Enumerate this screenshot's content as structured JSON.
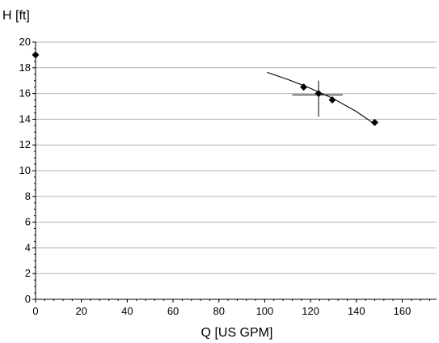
{
  "chart_data": {
    "type": "scatter",
    "xlabel": "Q [US GPM]",
    "ylabel": "H [ft]",
    "xlim": [
      0,
      175
    ],
    "ylim": [
      0,
      20
    ],
    "x_ticks": [
      0,
      20,
      40,
      60,
      80,
      100,
      120,
      140,
      160
    ],
    "y_ticks": [
      0,
      2,
      4,
      6,
      8,
      10,
      12,
      14,
      16,
      18,
      20
    ],
    "x_minor_step": 4,
    "y_minor_step": 0.5,
    "grid": "horizontal major",
    "points": [
      {
        "x": 0,
        "y": 19.0
      },
      {
        "x": 117,
        "y": 16.5
      },
      {
        "x": 123.5,
        "y": 16.0
      },
      {
        "x": 129.5,
        "y": 15.5
      },
      {
        "x": 148,
        "y": 13.75
      }
    ],
    "curve": [
      {
        "x": 101,
        "y": 17.65
      },
      {
        "x": 110,
        "y": 17.1
      },
      {
        "x": 120,
        "y": 16.4
      },
      {
        "x": 130,
        "y": 15.6
      },
      {
        "x": 140,
        "y": 14.6
      },
      {
        "x": 147,
        "y": 13.75
      }
    ],
    "operating_point": {
      "x": 123.5,
      "y": 15.9,
      "x_error": [
        112,
        134
      ],
      "y_error": [
        14.2,
        17.0
      ]
    }
  }
}
